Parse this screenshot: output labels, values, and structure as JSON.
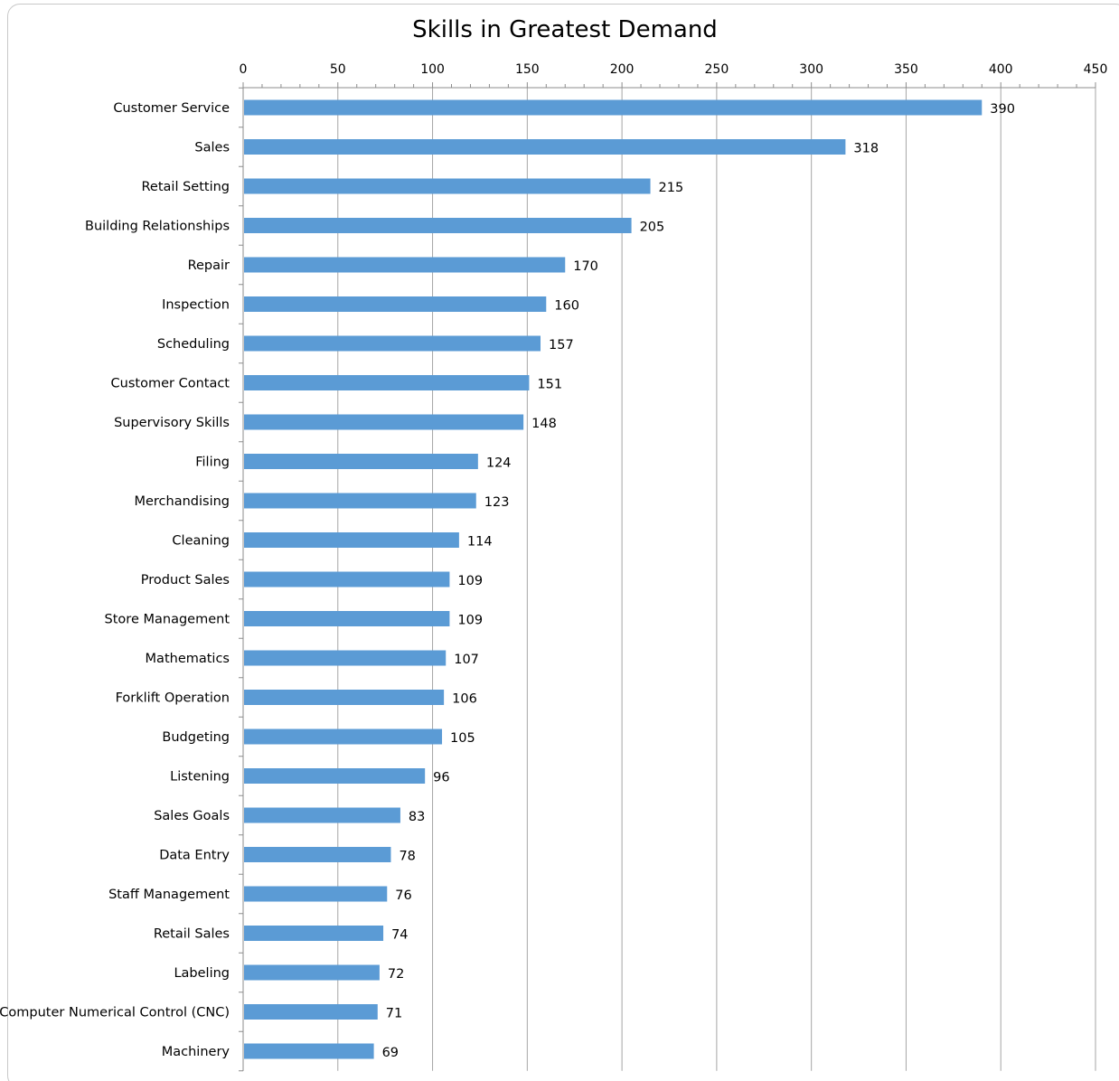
{
  "chart_data": {
    "type": "bar",
    "orientation": "horizontal",
    "title": "Skills in Greatest Demand",
    "xlabel": "",
    "ylabel": "",
    "xlim": [
      0,
      450
    ],
    "x_ticks": [
      "0",
      "50",
      "100",
      "150",
      "200",
      "250",
      "300",
      "350",
      "400",
      "450"
    ],
    "x_axis_position": "top",
    "grid": true,
    "legend": "none",
    "bar_color": "#5b9bd5",
    "grid_color": "#a6a6a6",
    "categories": [
      "Customer Service",
      "Sales",
      "Retail Setting",
      "Building Relationships",
      "Repair",
      "Inspection",
      "Scheduling",
      "Customer Contact",
      "Supervisory Skills",
      "Filing",
      "Merchandising",
      "Cleaning",
      "Product Sales",
      "Store Management",
      "Mathematics",
      "Forklift Operation",
      "Budgeting",
      "Listening",
      "Sales Goals",
      "Data Entry",
      "Staff Management",
      "Retail Sales",
      "Labeling",
      "Computer Numerical Control (CNC)",
      "Machinery"
    ],
    "values": [
      390,
      318,
      215,
      205,
      170,
      160,
      157,
      151,
      148,
      124,
      123,
      114,
      109,
      109,
      107,
      106,
      105,
      96,
      83,
      78,
      76,
      74,
      72,
      71,
      69
    ]
  }
}
